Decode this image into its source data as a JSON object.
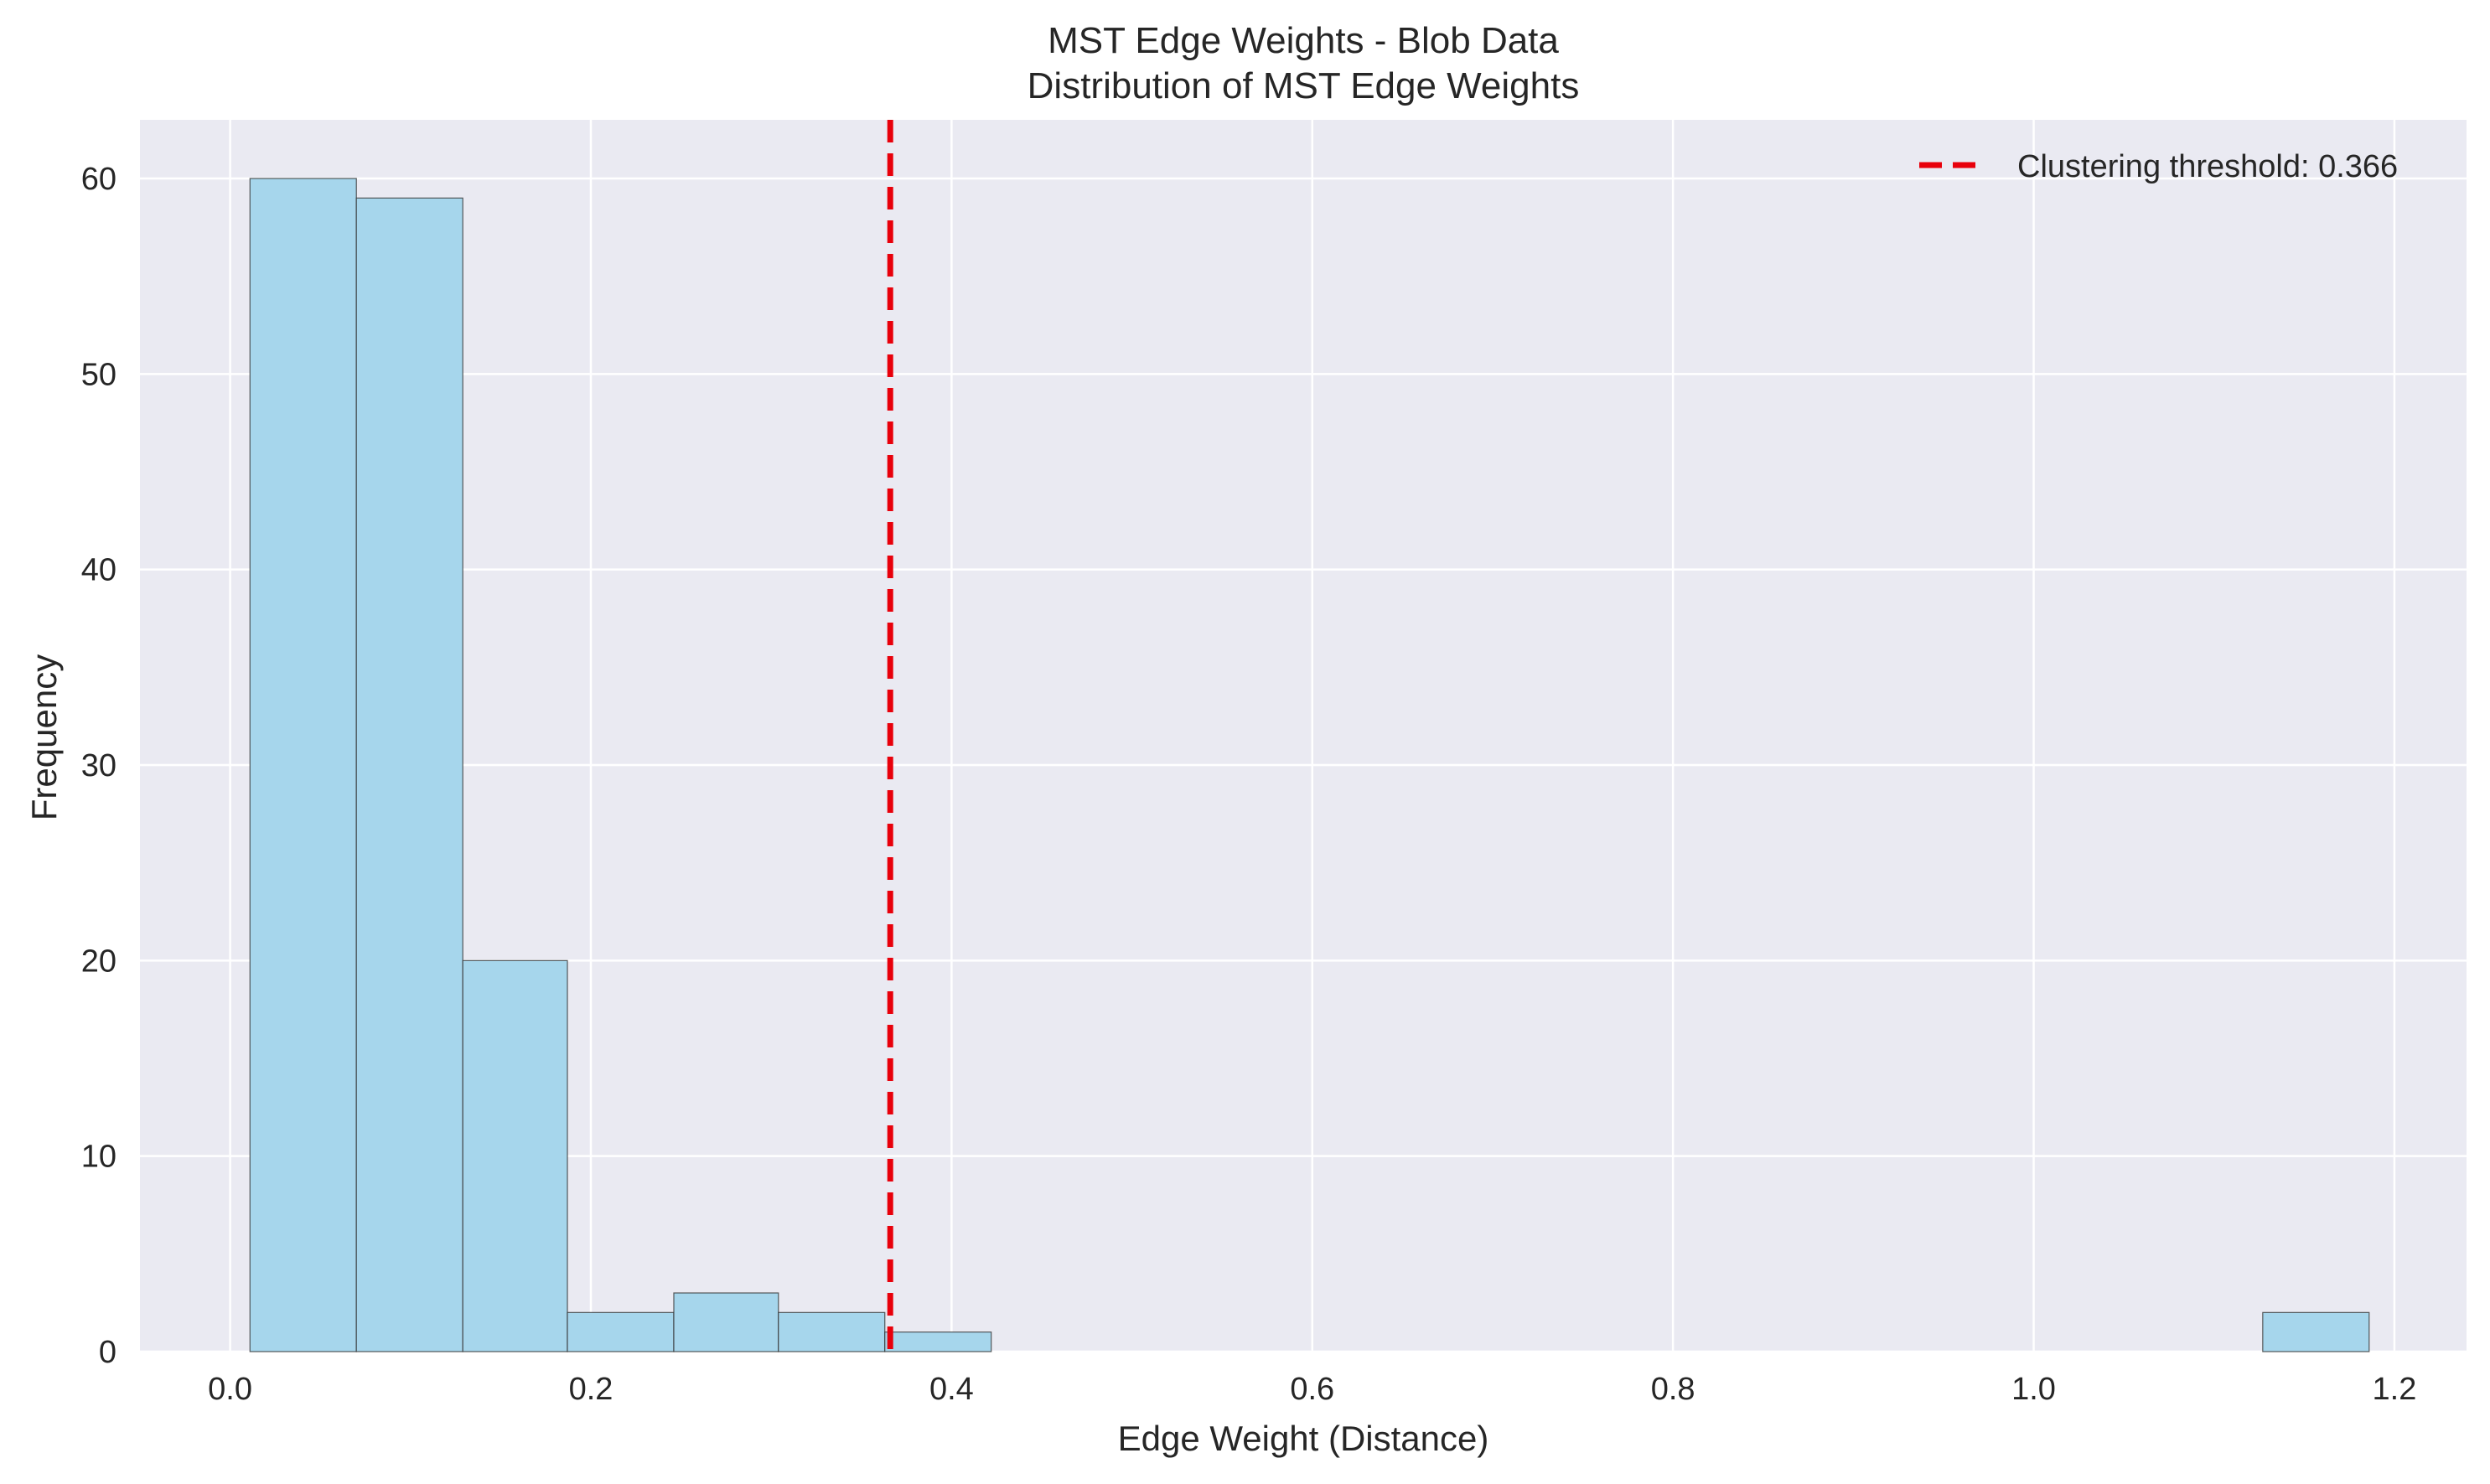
{
  "chart_data": {
    "type": "bar",
    "title": "MST Edge Weights - Blob Data",
    "subtitle": "Distribution of MST Edge Weights",
    "xlabel": "Edge Weight (Distance)",
    "ylabel": "Frequency",
    "xlim": [
      -0.05,
      1.24
    ],
    "ylim": [
      0,
      63
    ],
    "x_ticks": [
      0.0,
      0.2,
      0.4,
      0.6,
      0.8,
      1.0,
      1.2
    ],
    "x_tick_labels": [
      "0.0",
      "0.2",
      "0.4",
      "0.6",
      "0.8",
      "1.0",
      "1.2"
    ],
    "y_ticks": [
      0,
      10,
      20,
      30,
      40,
      50,
      60
    ],
    "y_tick_labels": [
      "0",
      "10",
      "20",
      "30",
      "40",
      "50",
      "60"
    ],
    "grid": true,
    "legend_position": "top-right",
    "bins": [
      {
        "start": 0.011,
        "end": 0.07,
        "count": 60
      },
      {
        "start": 0.07,
        "end": 0.129,
        "count": 59
      },
      {
        "start": 0.129,
        "end": 0.187,
        "count": 20
      },
      {
        "start": 0.187,
        "end": 0.246,
        "count": 2
      },
      {
        "start": 0.246,
        "end": 0.304,
        "count": 3
      },
      {
        "start": 0.304,
        "end": 0.363,
        "count": 2
      },
      {
        "start": 0.363,
        "end": 0.422,
        "count": 1
      },
      {
        "start": 1.127,
        "end": 1.186,
        "count": 2
      }
    ],
    "threshold": {
      "value": 0.366,
      "label": "Clustering threshold: 0.366",
      "color": "#e8000b"
    },
    "colors": {
      "bar_fill": "#a6d6ec",
      "bar_edge": "#333333",
      "plot_background": "#eaeaf2",
      "grid": "#ffffff"
    }
  }
}
